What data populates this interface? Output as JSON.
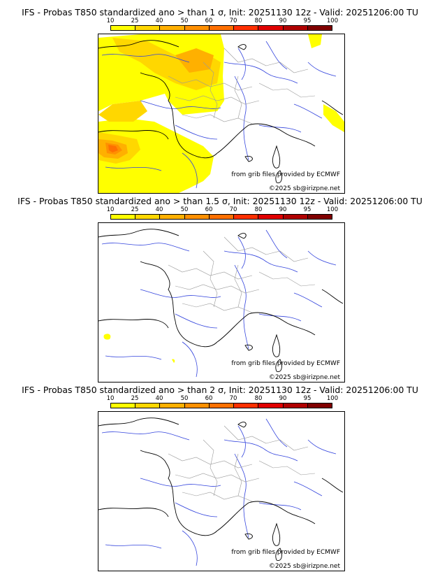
{
  "panels": [
    {
      "title": "IFS - Probas T850  standardized ano > than 1 σ, Init: 20251130 12z - Valid: 20251206:00 TU"
    },
    {
      "title": "IFS - Probas T850  standardized ano > than 1.5 σ, Init: 20251130 12z - Valid: 20251206:00 TU"
    },
    {
      "title": "IFS - Probas T850  standardized ano > than 2 σ, Init: 20251130 12z - Valid: 20251206:00 TU"
    }
  ],
  "colorbar": {
    "ticks": [
      "10",
      "25",
      "40",
      "50",
      "60",
      "70",
      "80",
      "90",
      "95",
      "100"
    ],
    "colors": [
      "#ffff00",
      "#ffd700",
      "#ffb000",
      "#ff9000",
      "#ff7000",
      "#ff3000",
      "#e00000",
      "#b00000",
      "#800000"
    ]
  },
  "credits": {
    "source": "from grib files provided by ECMWF",
    "copyright": "©2025 sb@irizpne.net"
  },
  "colors": {
    "coast": "#000000",
    "rivers": "#3344dd",
    "borders": "#999999"
  }
}
